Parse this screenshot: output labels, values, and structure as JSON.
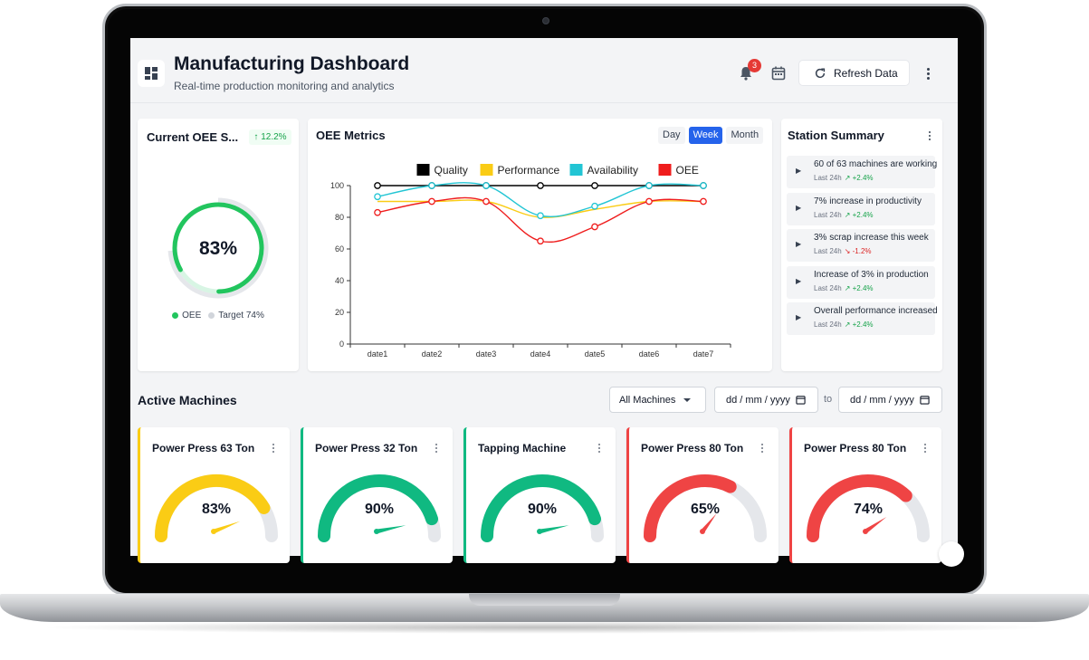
{
  "header": {
    "title": "Manufacturing Dashboard",
    "subtitle": "Real-time production monitoring and analytics",
    "notification_count": "3",
    "refresh_label": "Refresh Data"
  },
  "oee_summary": {
    "title": "Current OEE S...",
    "delta": "↑ 12.2%",
    "value": 0.83,
    "value_label": "83%",
    "target": 0.74,
    "legend_oee": "OEE",
    "legend_target": "Target 74%"
  },
  "metrics": {
    "title": "OEE Metrics",
    "tabs": [
      "Day",
      "Week",
      "Month"
    ],
    "active_tab": "Week"
  },
  "chart_data": {
    "type": "line",
    "x": [
      "date1",
      "date2",
      "date3",
      "date4",
      "date5",
      "date6",
      "date7"
    ],
    "ylim": [
      0,
      100
    ],
    "yticks": [
      0,
      20,
      40,
      60,
      80,
      100
    ],
    "legend_placement": "top",
    "series": [
      {
        "name": "Quality",
        "color": "#000000",
        "values": [
          100,
          100,
          100,
          100,
          100,
          100,
          100
        ]
      },
      {
        "name": "Performance",
        "color": "#facc15",
        "values": [
          90,
          90,
          90,
          80,
          85,
          90,
          90
        ]
      },
      {
        "name": "Availability",
        "color": "#22c5d4",
        "values": [
          93,
          100,
          100,
          81,
          87,
          100,
          100
        ]
      },
      {
        "name": "OEE",
        "color": "#ef1d1d",
        "values": [
          83,
          90,
          90,
          65,
          74,
          90,
          90
        ]
      }
    ]
  },
  "station_summary": {
    "title": "Station Summary",
    "items": [
      {
        "text": "60 of 63 machines are working",
        "period": "Last 24h",
        "change": "↗ +2.4%",
        "direction": "up"
      },
      {
        "text": "7% increase in productivity",
        "period": "Last 24h",
        "change": "↗ +2.4%",
        "direction": "up"
      },
      {
        "text": "3% scrap increase this week",
        "period": "Last 24h",
        "change": "↘ -1.2%",
        "direction": "down"
      },
      {
        "text": "Increase of 3% in production",
        "period": "Last 24h",
        "change": "↗ +2.4%",
        "direction": "up"
      },
      {
        "text": "Overall performance increased",
        "period": "Last 24h",
        "change": "↗ +2.4%",
        "direction": "up"
      }
    ]
  },
  "machines_section": {
    "title": "Active Machines",
    "filter": "All Machines",
    "date_placeholder": "dd / mm / yyyy",
    "to_label": "to"
  },
  "machines": [
    {
      "name": "Power Press 63 Ton",
      "value": 0.83,
      "label": "83%",
      "color": "#facc15"
    },
    {
      "name": "Power Press 32 Ton",
      "value": 0.9,
      "label": "90%",
      "color": "#10b981"
    },
    {
      "name": "Tapping Machine",
      "value": 0.9,
      "label": "90%",
      "color": "#10b981"
    },
    {
      "name": "Power Press 80 Ton",
      "value": 0.65,
      "label": "65%",
      "color": "#ef4444"
    },
    {
      "name": "Power Press 80 Ton",
      "value": 0.74,
      "label": "74%",
      "color": "#ef4444"
    }
  ],
  "colors": {
    "accent": "#2563eb",
    "good": "#22c55e",
    "track": "#e5e7eb"
  }
}
